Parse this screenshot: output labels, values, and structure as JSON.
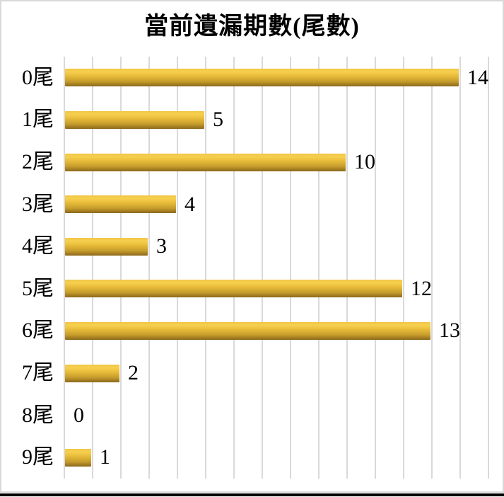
{
  "chart_data": {
    "type": "bar",
    "orientation": "horizontal",
    "title": "當前遺漏期數(尾數)",
    "categories": [
      "0尾",
      "1尾",
      "2尾",
      "3尾",
      "4尾",
      "5尾",
      "6尾",
      "7尾",
      "8尾",
      "9尾"
    ],
    "values": [
      14,
      5,
      10,
      4,
      3,
      12,
      13,
      2,
      0,
      1
    ],
    "xlabel": "",
    "ylabel": "",
    "xlim": [
      0,
      15
    ],
    "grid": true,
    "gridline_interval": 1,
    "legend": false,
    "data_labels": true
  },
  "colors": {
    "bar_gradient_top": "#f0c544",
    "bar_gradient_highlight": "#f7d050",
    "bar_gradient_mid": "#e9bd3b",
    "bar_gradient_low": "#c79d2c",
    "bar_gradient_bottom": "#8b681b",
    "gridline": "#d9d9d9",
    "frame_border": "#d9d9d9",
    "text": "#000000",
    "background": "#ffffff",
    "bottom_rule": "#000000"
  }
}
